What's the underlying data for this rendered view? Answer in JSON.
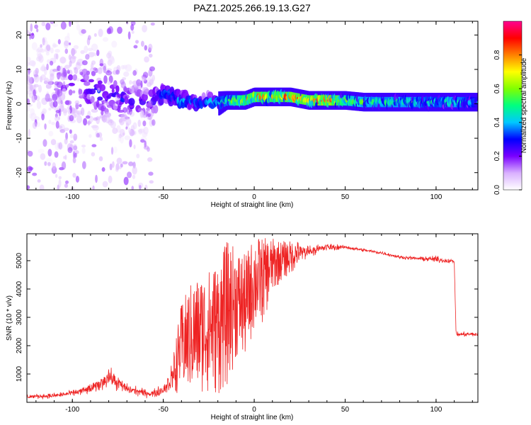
{
  "title": "PAZ1.2025.266.19.13.G27",
  "colors": {
    "snr_line": "#ee2222",
    "colormap": [
      "#ffffff",
      "#d9b0ff",
      "#7a00ff",
      "#0000ff",
      "#00c8ff",
      "#00ff80",
      "#80ff00",
      "#ffff00",
      "#ff8000",
      "#ff0000",
      "#ff0090"
    ]
  },
  "chart_data": [
    {
      "type": "heatmap",
      "description_kind": "spectrogram",
      "xlabel": "Height of straight line (km)",
      "ylabel": "Frequency (Hz)",
      "xlim": [
        -125,
        123
      ],
      "ylim": [
        -25,
        24
      ],
      "xticks": [
        -100,
        -50,
        0,
        50,
        100
      ],
      "yticks": [
        -20,
        -10,
        0,
        10,
        20
      ],
      "colorbar": {
        "label": "Normalized spectral amplitude",
        "range": [
          0,
          1
        ],
        "ticks": [
          0.0,
          0.2,
          0.4,
          0.6,
          0.8
        ]
      },
      "ridge": {
        "x": [
          -120,
          -110,
          -100,
          -90,
          -80,
          -70,
          -60,
          -50,
          -40,
          -30,
          -25,
          -20,
          -15,
          -10,
          -5,
          0,
          5,
          10,
          20,
          30,
          40,
          50,
          60,
          70,
          80,
          90,
          100,
          110,
          123
        ],
        "y": [
          6,
          6,
          5,
          4,
          3,
          1,
          0,
          3,
          1,
          0,
          1,
          0,
          1,
          1,
          1,
          2,
          2,
          2,
          2,
          1,
          1,
          1,
          0.5,
          0.5,
          0.5,
          0.5,
          0.5,
          0.5,
          0.5
        ],
        "peak_amplitude": [
          0.1,
          0.15,
          0.25,
          0.3,
          0.35,
          0.3,
          0.3,
          0.4,
          0.45,
          0.4,
          0.45,
          0.5,
          0.55,
          0.7,
          0.8,
          0.85,
          0.85,
          0.8,
          0.9,
          0.85,
          1.0,
          0.7,
          0.6,
          0.55,
          0.6,
          0.55,
          0.5,
          0.6,
          0.4
        ],
        "spread_hz": [
          10,
          9,
          8,
          7,
          6,
          5,
          4,
          3,
          3,
          2,
          2,
          2,
          1.5,
          1.5,
          1.5,
          1.5,
          1.5,
          1.5,
          1.5,
          1.5,
          1.5,
          1.5,
          1.5,
          1.5,
          1.5,
          1.5,
          1.5,
          1.5,
          1.5
        ]
      }
    },
    {
      "type": "line",
      "xlabel": "Height of straight line (km)",
      "ylabel": "SNR (10 * v/v)",
      "xlim": [
        -125,
        123
      ],
      "ylim": [
        0,
        5950
      ],
      "xticks": [
        -100,
        -50,
        0,
        50,
        100
      ],
      "yticks": [
        1000,
        2000,
        3000,
        4000,
        5000
      ],
      "envelope": {
        "x": [
          -125,
          -110,
          -100,
          -90,
          -85,
          -80,
          -75,
          -70,
          -65,
          -60,
          -55,
          -50,
          -45,
          -40,
          -35,
          -30,
          -25,
          -20,
          -15,
          -10,
          -5,
          0,
          5,
          10,
          15,
          20,
          25,
          30,
          35,
          40,
          45,
          50,
          60,
          70,
          80,
          90,
          100,
          105,
          110,
          111,
          123
        ],
        "low": [
          100,
          120,
          200,
          250,
          350,
          500,
          350,
          250,
          200,
          150,
          120,
          200,
          250,
          400,
          300,
          300,
          300,
          200,
          500,
          1500,
          1500,
          2500,
          2800,
          3800,
          4300,
          4500,
          4900,
          5100,
          5200,
          5300,
          5350,
          5400,
          5300,
          5200,
          5050,
          5000,
          4900,
          4900,
          4900,
          2300,
          2300
        ],
        "high": [
          300,
          350,
          450,
          700,
          900,
          1350,
          1000,
          700,
          600,
          500,
          500,
          700,
          1500,
          3500,
          4200,
          4500,
          4700,
          5000,
          5700,
          5500,
          5200,
          5900,
          5800,
          5800,
          5700,
          5700,
          5700,
          5600,
          5600,
          5650,
          5600,
          5550,
          5450,
          5350,
          5200,
          5150,
          5200,
          5100,
          5050,
          2500,
          2500
        ]
      }
    }
  ]
}
